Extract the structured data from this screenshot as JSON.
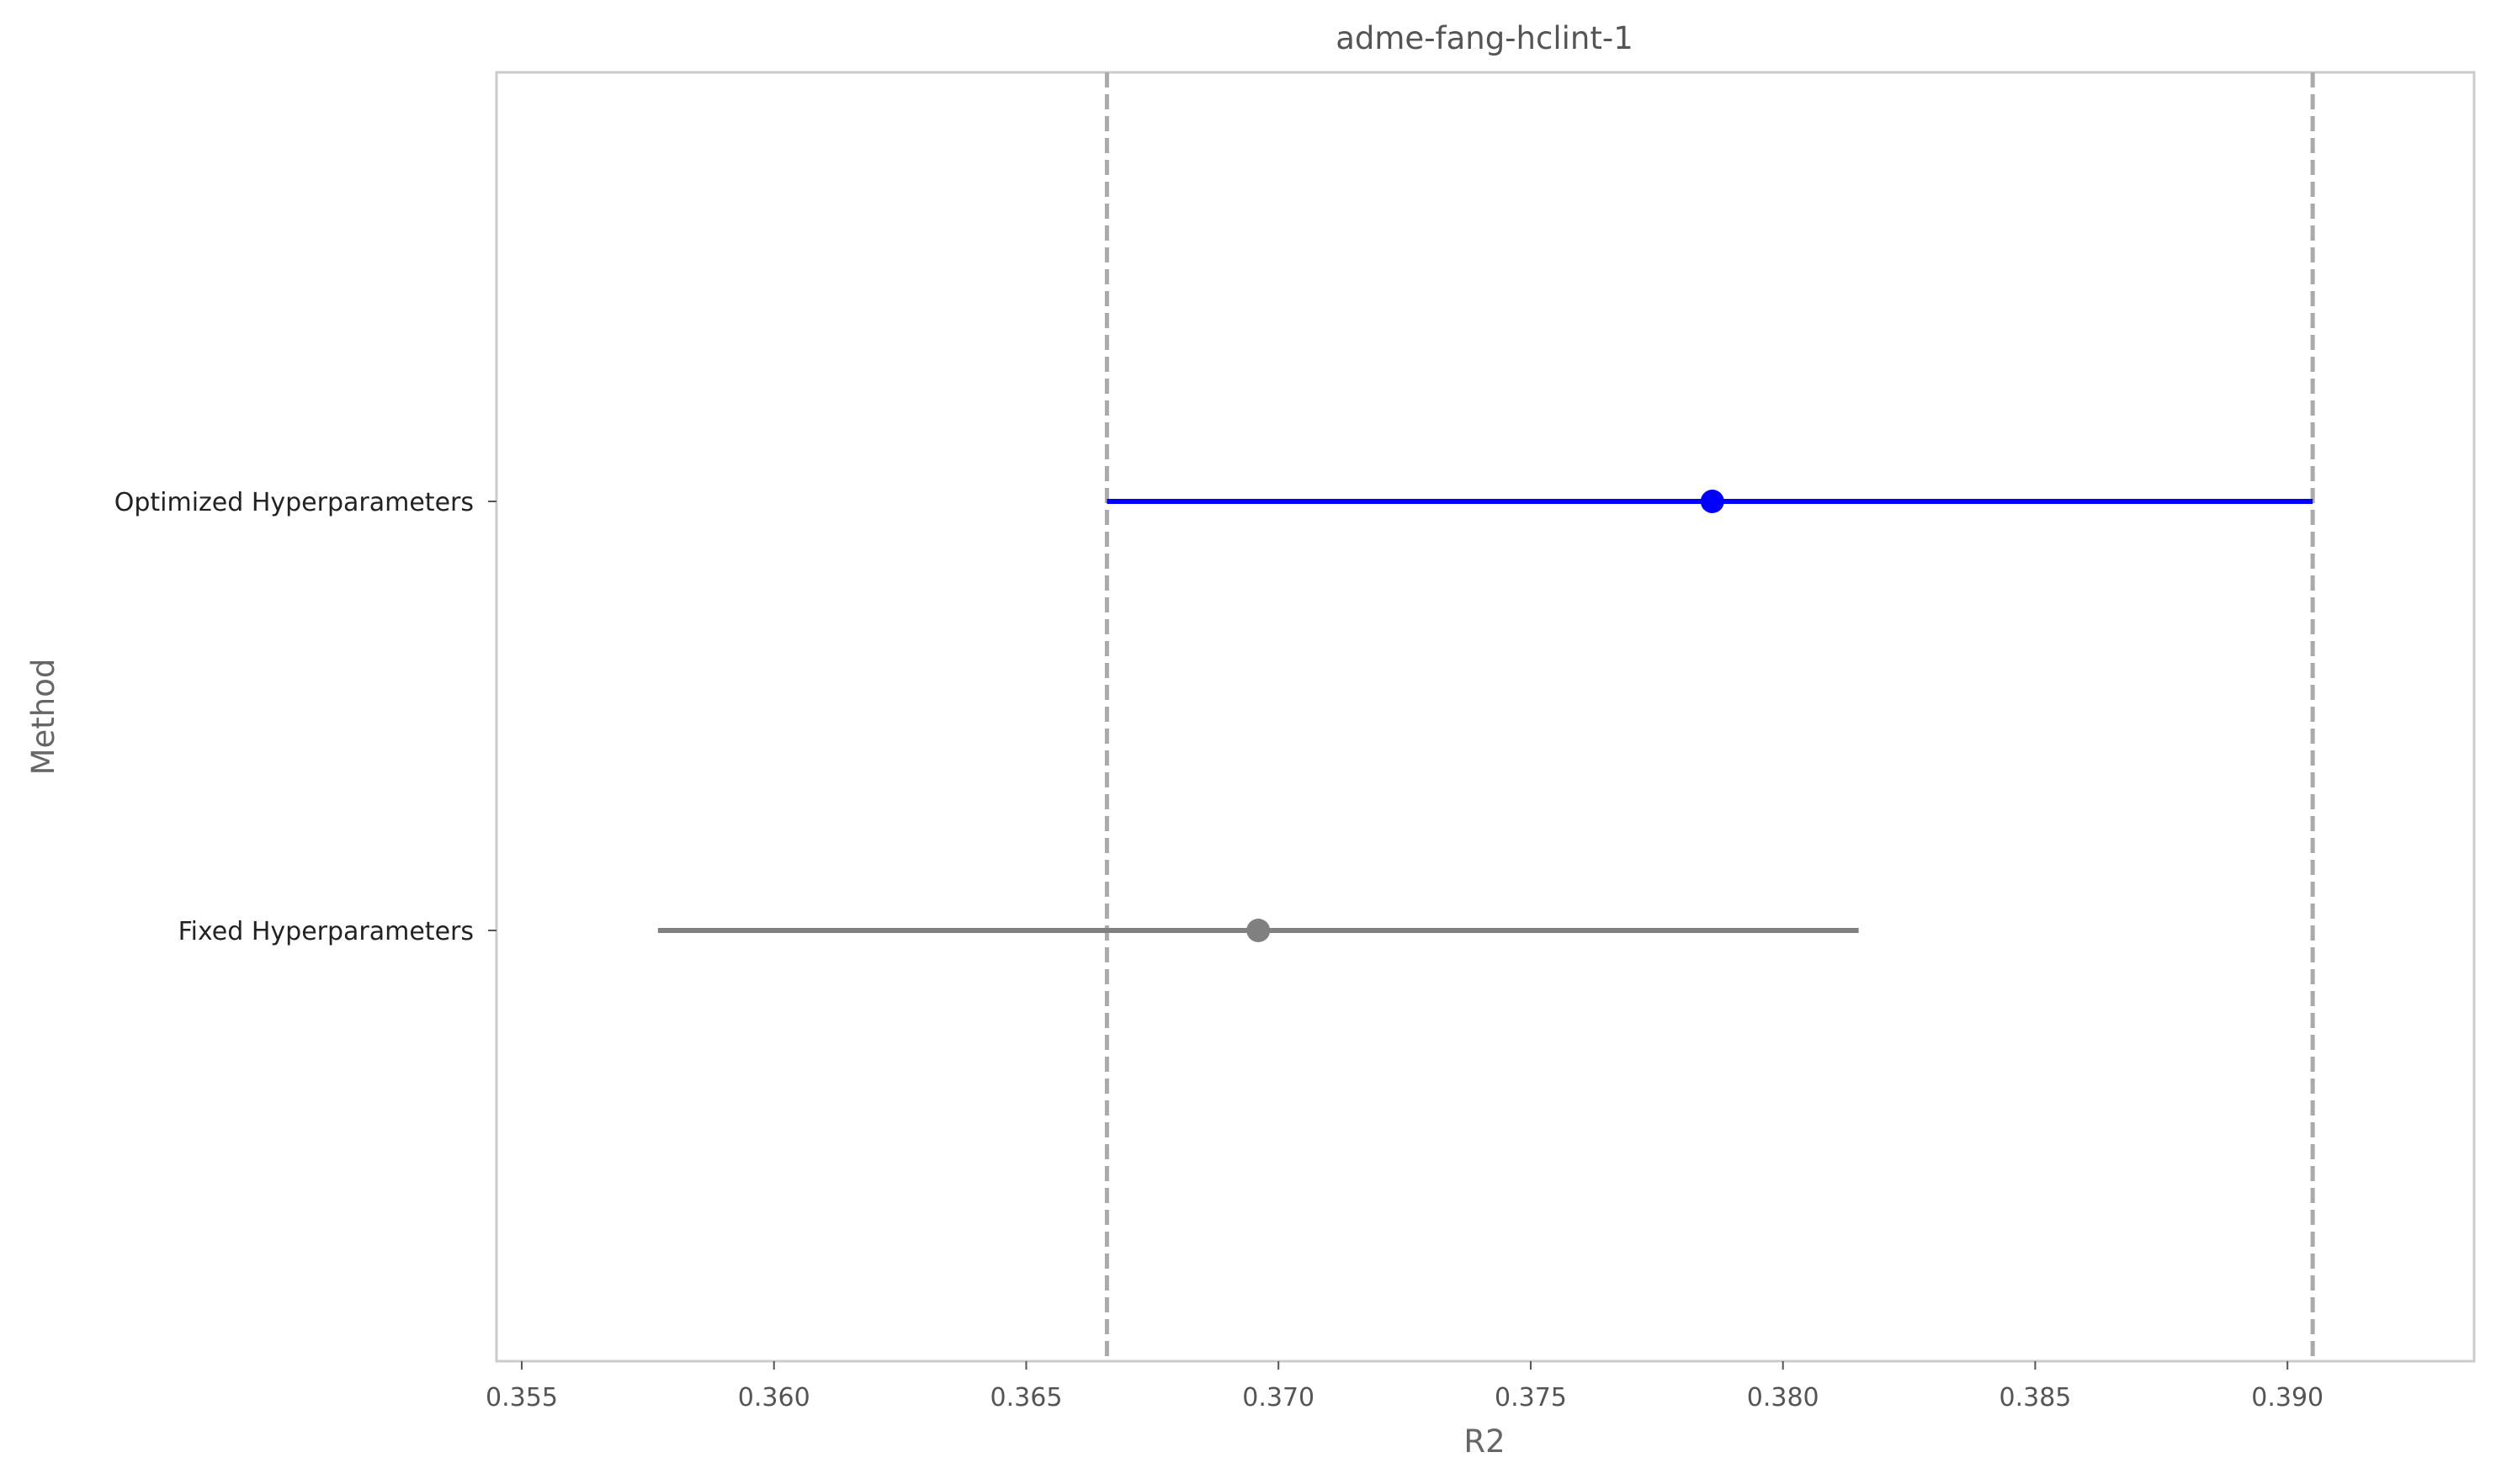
{
  "chart_data": {
    "type": "forest",
    "title": "adme-fang-hclint-1",
    "xlabel": "R2",
    "ylabel": "Method",
    "xlim": [
      0.3545,
      0.3937
    ],
    "xticks": [
      "0.355",
      "0.360",
      "0.365",
      "0.370",
      "0.375",
      "0.380",
      "0.385",
      "0.390"
    ],
    "grid": false,
    "legend": "none",
    "reference_lines": [
      0.3666,
      0.3905
    ],
    "categories": [
      "Optimized Hyperparameters",
      "Fixed Hyperparameters"
    ],
    "series": [
      {
        "category": "Optimized Hyperparameters",
        "estimate": 0.3786,
        "lower": 0.3666,
        "upper": 0.3905,
        "color": "#0000ff"
      },
      {
        "category": "Fixed Hyperparameters",
        "estimate": 0.3696,
        "lower": 0.3577,
        "upper": 0.3815,
        "color": "#808080"
      }
    ],
    "colors": {
      "frame": "#cccccc",
      "reference_line": "#aaaaaa"
    }
  }
}
